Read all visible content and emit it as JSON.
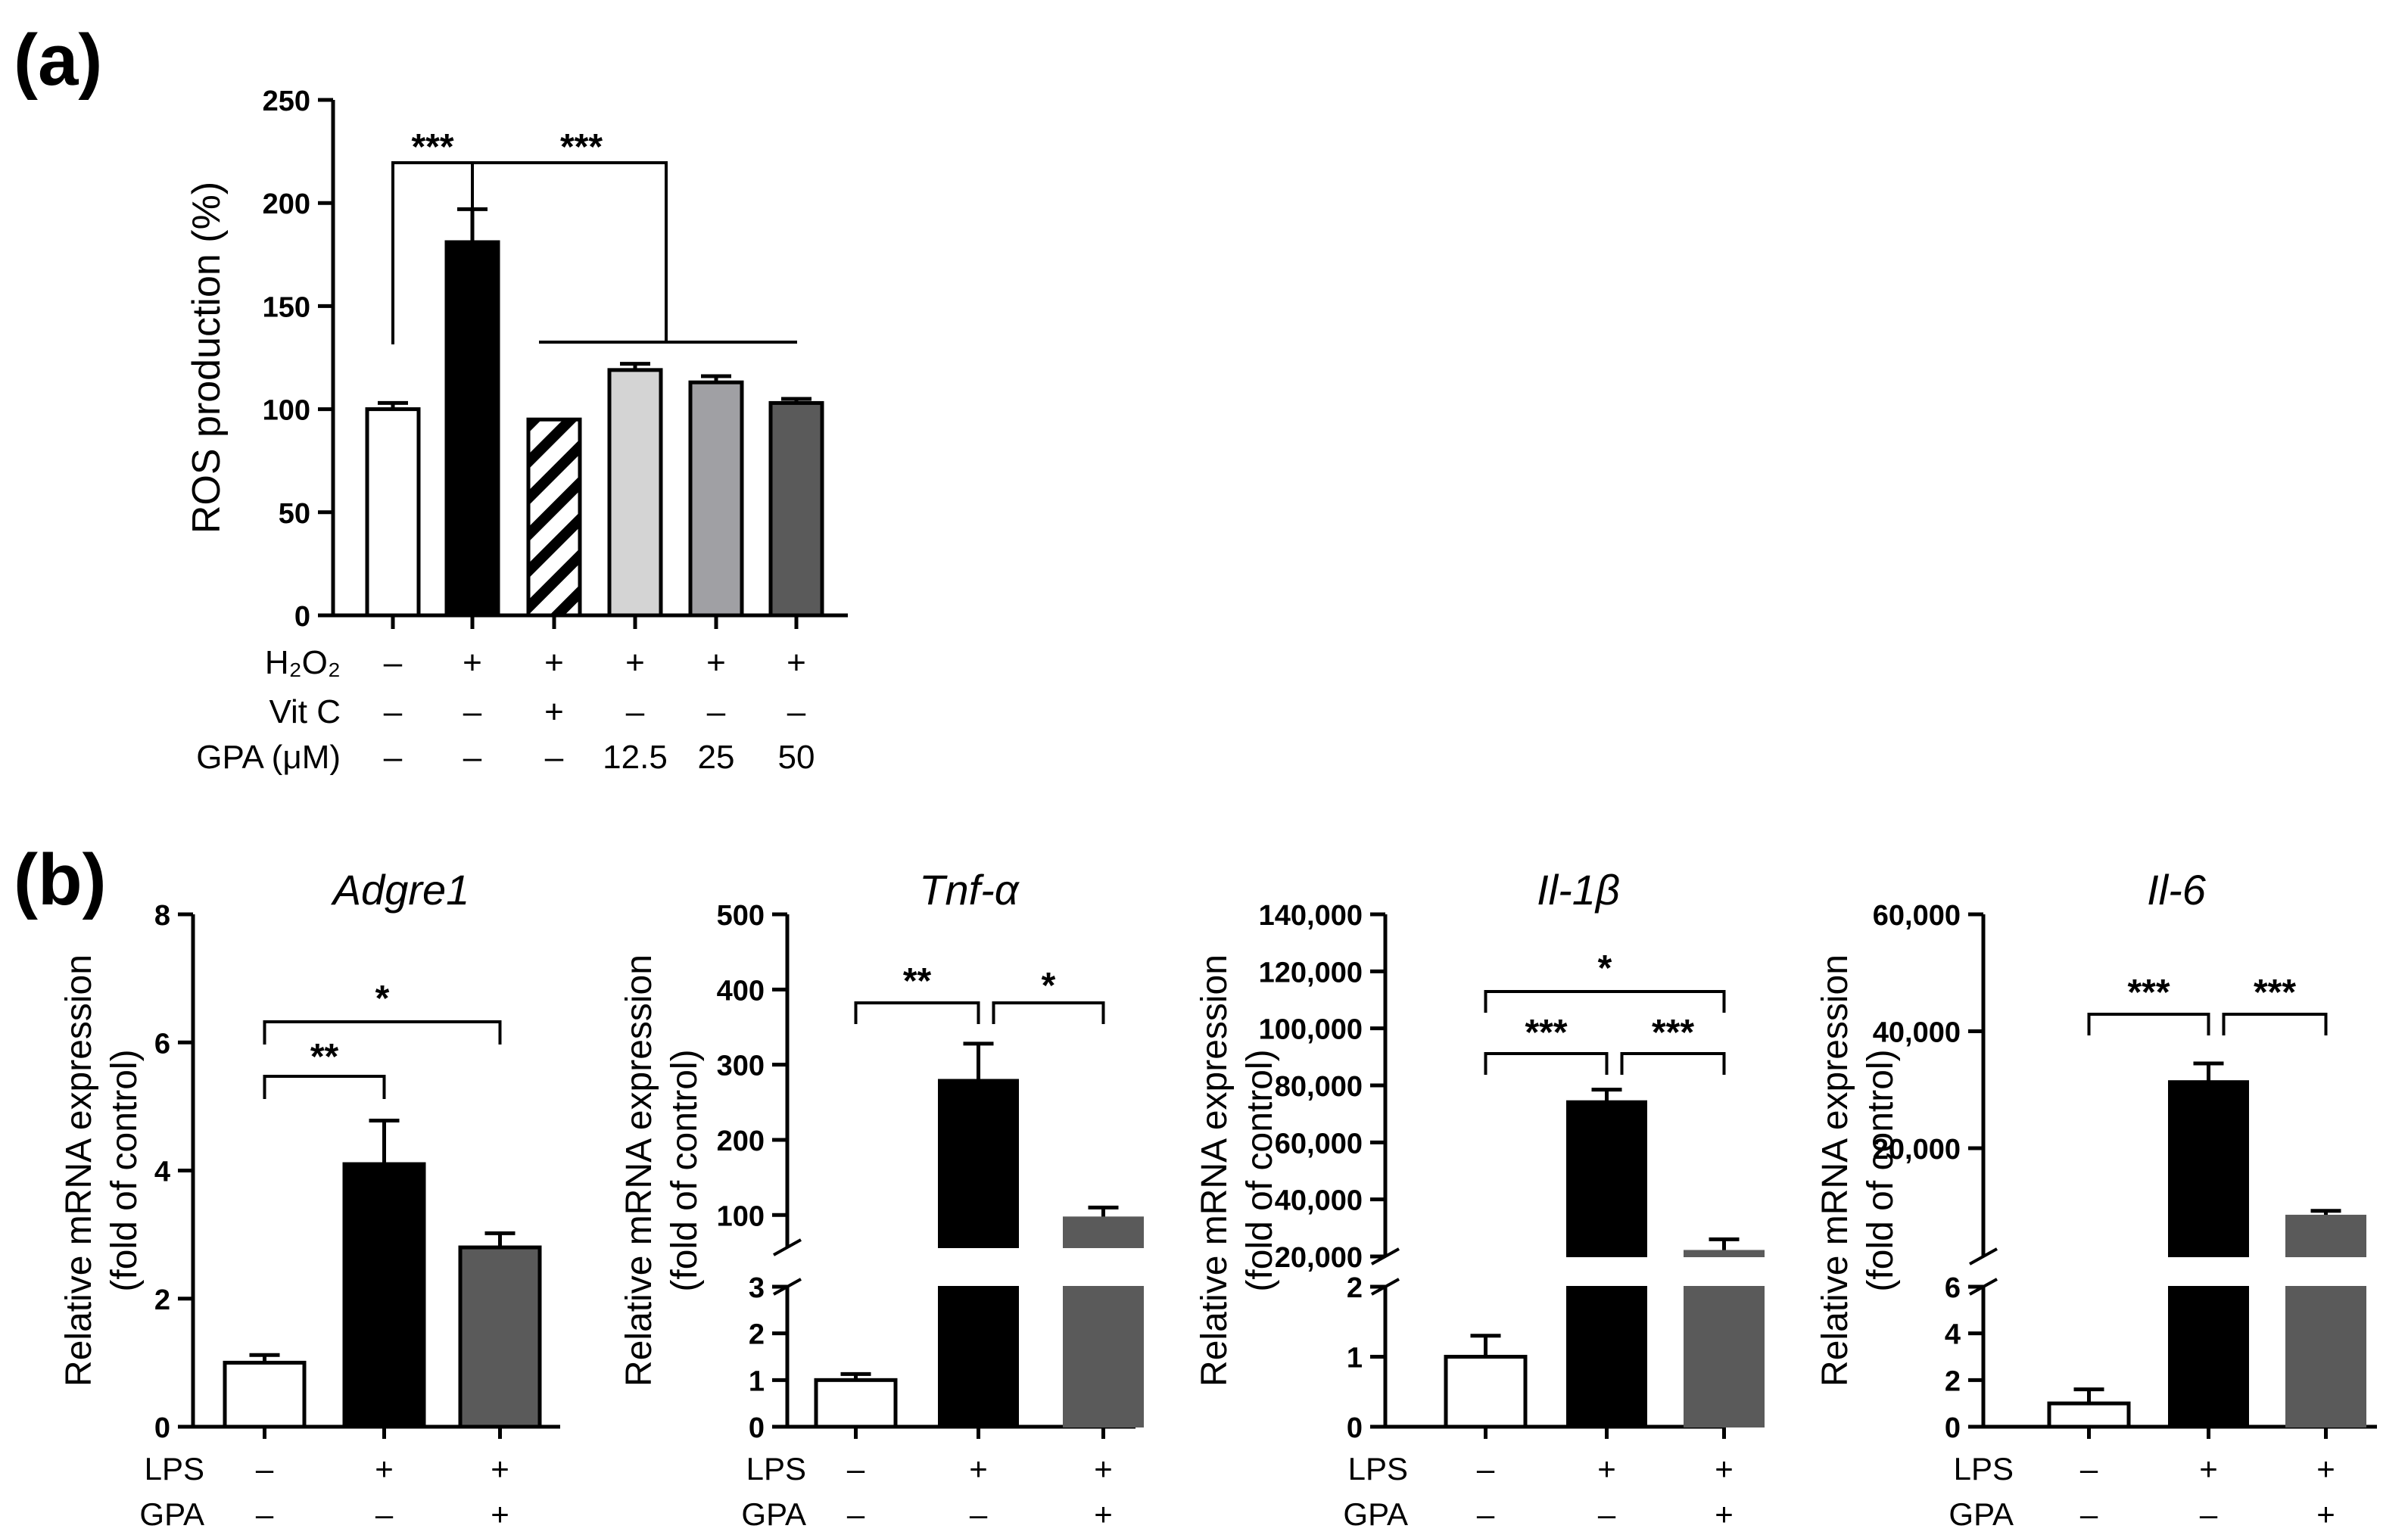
{
  "panel_labels": {
    "a": "(a)",
    "b": "(b)"
  },
  "chart_data": [
    {
      "id": "a",
      "type": "bar",
      "title": "",
      "ylabel": "ROS production (%)",
      "ylim": [
        0,
        250
      ],
      "yticks": [
        0,
        50,
        100,
        150,
        200,
        250
      ],
      "ytick_labels": [
        "0",
        "50",
        "100",
        "150",
        "200",
        "250"
      ],
      "bars": [
        {
          "value": 100,
          "err": 3,
          "fill": "#ffffff",
          "pattern": "none"
        },
        {
          "value": 181,
          "err": 16,
          "fill": "#000000",
          "pattern": "none"
        },
        {
          "value": 95,
          "err": 0,
          "fill": "#ffffff",
          "pattern": "hatch"
        },
        {
          "value": 119,
          "err": 3,
          "fill": "#d4d4d4",
          "pattern": "none"
        },
        {
          "value": 113,
          "err": 3,
          "fill": "#a0a0a4",
          "pattern": "none"
        },
        {
          "value": 103,
          "err": 2,
          "fill": "#5a5a5a",
          "pattern": "none"
        }
      ],
      "conditions": [
        {
          "label": "H₂O₂",
          "values": [
            "–",
            "+",
            "+",
            "+",
            "+",
            "+"
          ]
        },
        {
          "label": "Vit C",
          "values": [
            "–",
            "–",
            "+",
            "–",
            "–",
            "–"
          ]
        },
        {
          "label": "GPA (μM)",
          "values": [
            "–",
            "–",
            "–",
            "12.5",
            "25",
            "50"
          ]
        }
      ],
      "annotations": [
        {
          "text": "***",
          "between": "control vs H₂O₂"
        },
        {
          "text": "***",
          "between": "H₂O₂ vs treatments"
        }
      ]
    },
    {
      "id": "adgre1",
      "type": "bar",
      "title": "Adgre1",
      "ylabel_lines": [
        "Relative mRNA expression",
        "(fold of control)"
      ],
      "ylim": [
        0,
        8
      ],
      "yticks": [
        0,
        2,
        4,
        6,
        8
      ],
      "ytick_labels": [
        "0",
        "2",
        "4",
        "6",
        "8"
      ],
      "broken_axis": false,
      "bars": [
        {
          "value": 1.0,
          "err": 0.12,
          "fill": "#ffffff"
        },
        {
          "value": 4.1,
          "err": 0.68,
          "fill": "#000000"
        },
        {
          "value": 2.8,
          "err": 0.22,
          "fill": "#5a5a5a"
        }
      ],
      "conditions": [
        {
          "label": "LPS",
          "values": [
            "–",
            "+",
            "+"
          ]
        },
        {
          "label": "GPA",
          "values": [
            "–",
            "–",
            "+"
          ]
        }
      ],
      "annotations": [
        {
          "text": "**",
          "from": 0,
          "to": 1
        },
        {
          "text": "*",
          "from": 0,
          "to": 2
        }
      ]
    },
    {
      "id": "tnfa",
      "type": "bar",
      "title": "Tnf-α",
      "ylabel_lines": [
        "Relative mRNA expression",
        "(fold of control)"
      ],
      "broken_axis": true,
      "lower_ylim": [
        0,
        3
      ],
      "lower_ticks": [
        0,
        1,
        2,
        3
      ],
      "lower_tick_labels": [
        "0",
        "1",
        "2",
        "3"
      ],
      "upper_ylim": [
        57,
        500
      ],
      "upper_ticks": [
        100,
        200,
        300,
        400,
        500
      ],
      "upper_tick_labels": [
        "100",
        "200",
        "300",
        "400",
        "500"
      ],
      "bars": [
        {
          "value": 1.0,
          "err": 0.13,
          "fill": "#ffffff"
        },
        {
          "value": 280,
          "err": 48,
          "fill": "#000000"
        },
        {
          "value": 97,
          "err": 13,
          "fill": "#5a5a5a"
        }
      ],
      "conditions": [
        {
          "label": "LPS",
          "values": [
            "–",
            "+",
            "+"
          ]
        },
        {
          "label": "GPA",
          "values": [
            "–",
            "–",
            "+"
          ]
        }
      ],
      "annotations": [
        {
          "text": "**",
          "from": 0,
          "to": 1
        },
        {
          "text": "*",
          "from": 1,
          "to": 2
        }
      ]
    },
    {
      "id": "il1b",
      "type": "bar",
      "title": "Il-1β",
      "ylabel_lines": [
        "Relative mRNA expression",
        "(fold of control)"
      ],
      "broken_axis": true,
      "lower_ylim": [
        0,
        2
      ],
      "lower_ticks": [
        0,
        1,
        2
      ],
      "lower_tick_labels": [
        "0",
        "1",
        "2"
      ],
      "upper_ylim": [
        20000,
        140000
      ],
      "upper_ticks": [
        20000,
        40000,
        60000,
        80000,
        100000,
        120000,
        140000
      ],
      "upper_tick_labels": [
        "20,000",
        "40,000",
        "60,000",
        "80,000",
        "100,000",
        "120,000",
        "140,000"
      ],
      "bars": [
        {
          "value": 1.0,
          "err": 0.3,
          "fill": "#ffffff"
        },
        {
          "value": 74500,
          "err": 4000,
          "fill": "#000000"
        },
        {
          "value": 22000,
          "err": 4000,
          "fill": "#5a5a5a"
        }
      ],
      "conditions": [
        {
          "label": "LPS",
          "values": [
            "–",
            "+",
            "+"
          ]
        },
        {
          "label": "GPA",
          "values": [
            "–",
            "–",
            "+"
          ]
        }
      ],
      "annotations": [
        {
          "text": "***",
          "from": 0,
          "to": 1
        },
        {
          "text": "***",
          "from": 1,
          "to": 2
        },
        {
          "text": "*",
          "from": 0,
          "to": 2
        }
      ]
    },
    {
      "id": "il6",
      "type": "bar",
      "title": "Il-6",
      "ylabel_lines": [
        "Relative mRNA expression",
        "(fold of control)"
      ],
      "broken_axis": true,
      "lower_ylim": [
        0,
        6
      ],
      "lower_ticks": [
        0,
        2,
        4,
        6
      ],
      "lower_tick_labels": [
        "0",
        "2",
        "4",
        "6"
      ],
      "upper_ylim": [
        1500,
        60000
      ],
      "upper_ticks": [
        20000,
        40000,
        60000
      ],
      "upper_tick_labels": [
        "20,000",
        "40,000",
        "60,000"
      ],
      "bars": [
        {
          "value": 1.0,
          "err": 0.6,
          "fill": "#ffffff"
        },
        {
          "value": 31500,
          "err": 3000,
          "fill": "#000000"
        },
        {
          "value": 8500,
          "err": 800,
          "fill": "#5a5a5a"
        }
      ],
      "conditions": [
        {
          "label": "LPS",
          "values": [
            "–",
            "+",
            "+"
          ]
        },
        {
          "label": "GPA",
          "values": [
            "–",
            "–",
            "+"
          ]
        }
      ],
      "annotations": [
        {
          "text": "***",
          "from": 0,
          "to": 1
        },
        {
          "text": "***",
          "from": 1,
          "to": 2
        }
      ]
    }
  ]
}
